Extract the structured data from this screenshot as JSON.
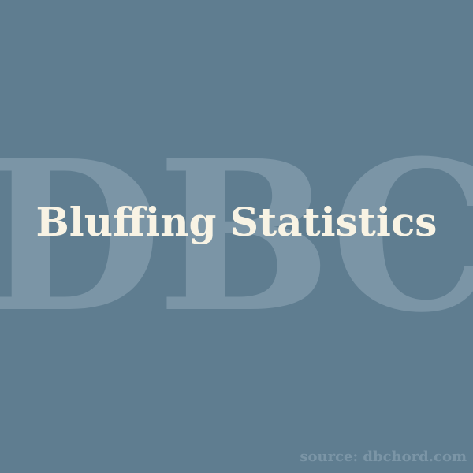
{
  "watermark": {
    "text": "DBC"
  },
  "title": {
    "text": "Bluffing Statistics"
  },
  "source": {
    "text": "source: dbchord.com"
  },
  "colors": {
    "background": "#5f7d90",
    "watermark": "#7b95a6",
    "title": "#f8f3e4",
    "source": "#7b95a6"
  }
}
